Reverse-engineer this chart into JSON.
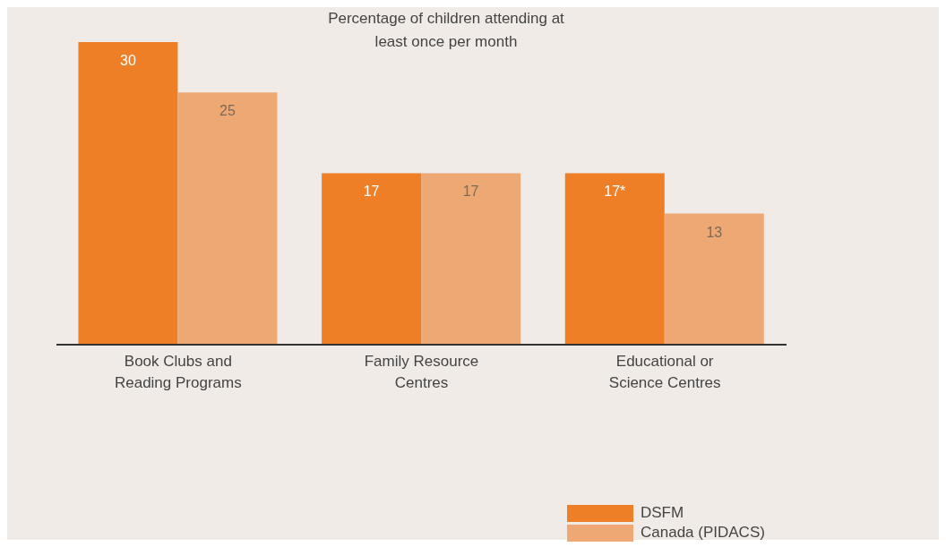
{
  "chart_data": {
    "type": "bar",
    "title": "Percentage of children attending at least once per month",
    "categories": [
      "Book Clubs and Reading Programs",
      "Family Resource Centres",
      "Educational or Science Centres"
    ],
    "series": [
      {
        "name": "DSFM",
        "color": "#ee7f26",
        "values": [
          30,
          17,
          17
        ],
        "value_labels": [
          "30",
          "17",
          "17*"
        ]
      },
      {
        "name": "Canada (PIDACS)",
        "color": "#eea874",
        "values": [
          25,
          17,
          13
        ],
        "value_labels": [
          "25",
          "17",
          "13"
        ]
      }
    ],
    "ylim": [
      0,
      30
    ],
    "tick_labels": "x",
    "legend": "bottom right"
  }
}
